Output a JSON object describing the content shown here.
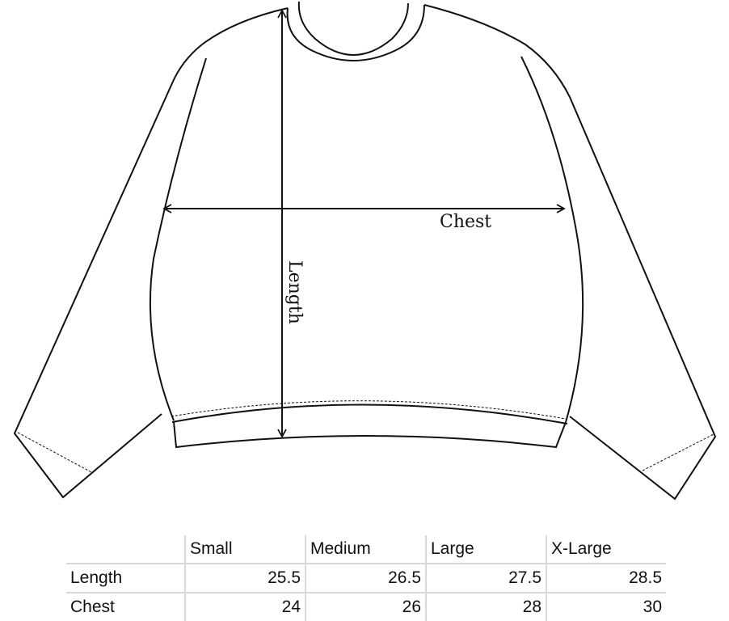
{
  "diagram": {
    "chest_label": "Chest",
    "length_label": "Length"
  },
  "size_table": {
    "columns": [
      "",
      "Small",
      "Medium",
      "Large",
      "X-Large"
    ],
    "rows": [
      {
        "label": "Length",
        "values": [
          "25.5",
          "26.5",
          "27.5",
          "28.5"
        ]
      },
      {
        "label": "Chest",
        "values": [
          "24",
          "26",
          "28",
          "30"
        ]
      }
    ]
  }
}
